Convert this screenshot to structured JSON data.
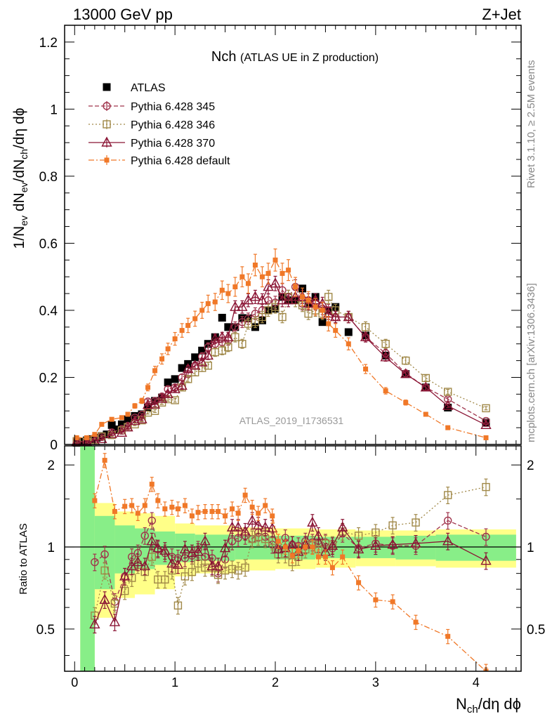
{
  "header": {
    "left": "13000 GeV pp",
    "right": "Z+Jet"
  },
  "side": {
    "rivet": "Rivet 3.1.10, ≥ 2.5M events",
    "mcplots": "mcplots.cern.ch [arXiv:1306.3436]"
  },
  "watermark": "ATLAS_2019_I1736531",
  "title": {
    "main": "Nch",
    "sub": "(ATLAS UE in Z production)"
  },
  "axes": {
    "ylabel_top": "1/N_ev dN_ev/dN_ch/dη dϕ",
    "ylabel_bottom": "Ratio to ATLAS",
    "xlabel": "N_ch/dη dϕ"
  },
  "chart_data": [
    {
      "type": "scatter",
      "panel": "main",
      "xlim": [
        -0.1,
        4.45
      ],
      "ylim": [
        0,
        1.25
      ],
      "xticks": [
        0,
        1,
        2,
        3,
        4
      ],
      "yticks": [
        0,
        0.2,
        0.4,
        0.6,
        0.8,
        1,
        1.2
      ],
      "ytick_labels": [
        "0",
        "0.2",
        "0.4",
        "0.6",
        "0.8",
        "1",
        "1.2"
      ],
      "legend_position": "top-left",
      "series": [
        {
          "name": "ATLAS",
          "color": "#000000",
          "marker": "filled-square",
          "dash": "none",
          "x": [
            0.02,
            0.07,
            0.12,
            0.17,
            0.22,
            0.27,
            0.32,
            0.37,
            0.42,
            0.47,
            0.53,
            0.6,
            0.67,
            0.73,
            0.8,
            0.87,
            0.93,
            1.0,
            1.07,
            1.13,
            1.2,
            1.27,
            1.33,
            1.4,
            1.47,
            1.53,
            1.6,
            1.67,
            1.73,
            1.8,
            1.87,
            1.93,
            2.0,
            2.07,
            2.13,
            2.2,
            2.27,
            2.33,
            2.4,
            2.47,
            2.53,
            2.6,
            2.73,
            2.9,
            3.1,
            3.3,
            3.5,
            3.72,
            4.1
          ],
          "y": [
            0.005,
            0.008,
            0.012,
            0.016,
            0.02,
            0.025,
            0.03,
            0.058,
            0.045,
            0.06,
            0.075,
            0.085,
            0.09,
            0.11,
            0.13,
            0.14,
            0.185,
            0.195,
            0.228,
            0.24,
            0.26,
            0.28,
            0.3,
            0.32,
            0.378,
            0.35,
            0.35,
            0.377,
            0.376,
            0.35,
            0.37,
            0.4,
            0.405,
            0.44,
            0.43,
            0.43,
            0.465,
            0.42,
            0.44,
            0.365,
            0.4,
            0.41,
            0.335,
            0.325,
            0.265,
            0.21,
            0.17,
            0.11,
            0.065
          ]
        },
        {
          "name": "Pythia 6.428 345",
          "color": "#a0344c",
          "marker": "open-circle",
          "dash": "6,3",
          "x": [
            0.02,
            0.12,
            0.2,
            0.27,
            0.37,
            0.47,
            0.53,
            0.6,
            0.67,
            0.73,
            0.8,
            0.87,
            0.93,
            1.0,
            1.07,
            1.13,
            1.2,
            1.27,
            1.33,
            1.4,
            1.47,
            1.53,
            1.6,
            1.67,
            1.73,
            1.8,
            1.87,
            1.93,
            2.0,
            2.07,
            2.13,
            2.2,
            2.27,
            2.33,
            2.4,
            2.47,
            2.53,
            2.6,
            2.73,
            2.9,
            3.1,
            3.3,
            3.5,
            3.72,
            4.1
          ],
          "y": [
            0.012,
            0.011,
            0.02,
            0.024,
            0.036,
            0.046,
            0.055,
            0.08,
            0.088,
            0.128,
            0.13,
            0.143,
            0.165,
            0.17,
            0.2,
            0.21,
            0.235,
            0.262,
            0.29,
            0.3,
            0.305,
            0.31,
            0.35,
            0.365,
            0.375,
            0.39,
            0.4,
            0.43,
            0.423,
            0.46,
            0.44,
            0.47,
            0.42,
            0.43,
            0.42,
            0.405,
            0.4,
            0.38,
            0.38,
            0.32,
            0.272,
            0.212,
            0.17,
            0.135,
            0.07
          ]
        },
        {
          "name": "Pythia 6.428 346",
          "color": "#a08848",
          "marker": "open-square",
          "dash": "2,3",
          "x": [
            0.02,
            0.12,
            0.2,
            0.27,
            0.37,
            0.47,
            0.53,
            0.6,
            0.67,
            0.73,
            0.8,
            0.87,
            0.93,
            1.0,
            1.07,
            1.13,
            1.2,
            1.27,
            1.33,
            1.4,
            1.47,
            1.53,
            1.6,
            1.67,
            1.73,
            1.8,
            1.87,
            1.93,
            2.0,
            2.07,
            2.13,
            2.2,
            2.27,
            2.33,
            2.4,
            2.47,
            2.53,
            2.6,
            2.73,
            2.9,
            3.1,
            3.3,
            3.5,
            3.72,
            4.1
          ],
          "y": [
            0.01,
            0.009,
            0.014,
            0.024,
            0.028,
            0.042,
            0.052,
            0.06,
            0.072,
            0.095,
            0.1,
            0.125,
            0.135,
            0.132,
            0.17,
            0.195,
            0.215,
            0.228,
            0.235,
            0.275,
            0.28,
            0.29,
            0.32,
            0.3,
            0.36,
            0.365,
            0.38,
            0.4,
            0.41,
            0.38,
            0.44,
            0.43,
            0.415,
            0.39,
            0.4,
            0.39,
            0.44,
            0.4,
            0.38,
            0.35,
            0.3,
            0.25,
            0.198,
            0.157,
            0.108
          ]
        },
        {
          "name": "Pythia 6.428 370",
          "color": "#8a1434",
          "marker": "open-triangle",
          "dash": "none",
          "x": [
            0.02,
            0.12,
            0.2,
            0.27,
            0.37,
            0.47,
            0.53,
            0.6,
            0.67,
            0.73,
            0.8,
            0.87,
            0.93,
            1.0,
            1.07,
            1.13,
            1.2,
            1.27,
            1.33,
            1.4,
            1.47,
            1.53,
            1.6,
            1.67,
            1.73,
            1.8,
            1.87,
            1.93,
            2.0,
            2.07,
            2.13,
            2.2,
            2.27,
            2.33,
            2.4,
            2.47,
            2.53,
            2.6,
            2.73,
            2.9,
            3.1,
            3.3,
            3.5,
            3.72,
            4.1
          ],
          "y": [
            0.008,
            0.008,
            0.01,
            0.016,
            0.031,
            0.035,
            0.051,
            0.07,
            0.075,
            0.118,
            0.119,
            0.136,
            0.15,
            0.165,
            0.175,
            0.225,
            0.235,
            0.245,
            0.265,
            0.315,
            0.32,
            0.32,
            0.41,
            0.41,
            0.43,
            0.44,
            0.43,
            0.47,
            0.48,
            0.43,
            0.43,
            0.44,
            0.44,
            0.42,
            0.43,
            0.42,
            0.39,
            0.38,
            0.38,
            0.32,
            0.26,
            0.21,
            0.17,
            0.115,
            0.058
          ]
        },
        {
          "name": "Pythia 6.428 default",
          "color": "#f07828",
          "marker": "small-filled-square",
          "dash": "8,3,2,3",
          "x": [
            0.02,
            0.12,
            0.2,
            0.27,
            0.37,
            0.47,
            0.53,
            0.6,
            0.67,
            0.73,
            0.8,
            0.87,
            0.93,
            1.0,
            1.07,
            1.13,
            1.2,
            1.27,
            1.33,
            1.4,
            1.47,
            1.53,
            1.6,
            1.67,
            1.73,
            1.8,
            1.87,
            1.93,
            2.0,
            2.07,
            2.13,
            2.2,
            2.27,
            2.33,
            2.4,
            2.47,
            2.53,
            2.6,
            2.73,
            2.9,
            3.1,
            3.3,
            3.5,
            3.72,
            4.1
          ],
          "y": [
            0.02,
            0.02,
            0.03,
            0.06,
            0.075,
            0.08,
            0.09,
            0.115,
            0.13,
            0.17,
            0.22,
            0.255,
            0.285,
            0.315,
            0.34,
            0.355,
            0.375,
            0.4,
            0.42,
            0.425,
            0.46,
            0.45,
            0.47,
            0.5,
            0.48,
            0.535,
            0.5,
            0.51,
            0.55,
            0.51,
            0.52,
            0.47,
            0.44,
            0.43,
            0.41,
            0.4,
            0.36,
            0.34,
            0.3,
            0.225,
            0.16,
            0.125,
            0.09,
            0.05,
            0.02
          ]
        }
      ]
    },
    {
      "type": "scatter",
      "panel": "ratio",
      "xlim": [
        -0.1,
        4.45
      ],
      "ylim": [
        0.35,
        2.35
      ],
      "log_y": true,
      "reference": 1,
      "yticks": [
        0.5,
        1,
        2
      ],
      "ytick_labels": [
        "0.5",
        "1",
        "2"
      ],
      "xticks": [
        0,
        1,
        2,
        3,
        4
      ],
      "xtick_labels": [
        "0",
        "1",
        "2",
        "3",
        "4"
      ],
      "band_inner": {
        "color": "#88ee88",
        "x": [
          0.0,
          0.2,
          0.4,
          0.6,
          0.8,
          1.0,
          1.2,
          1.6,
          2.0,
          2.4,
          2.8,
          3.2,
          3.6,
          4.4
        ],
        "half_width": [
          1.5,
          0.3,
          0.2,
          0.17,
          0.14,
          0.12,
          0.11,
          0.1,
          0.1,
          0.09,
          0.09,
          0.1,
          0.11,
          0.11
        ]
      },
      "band_outer": {
        "color": "#ffff88",
        "x": [
          0.0,
          0.2,
          0.4,
          0.6,
          0.8,
          1.0,
          1.2,
          1.6,
          2.0,
          2.4,
          2.8,
          3.2,
          3.6,
          4.4
        ],
        "half_width": [
          1.6,
          0.45,
          0.35,
          0.33,
          0.3,
          0.22,
          0.2,
          0.18,
          0.17,
          0.16,
          0.15,
          0.15,
          0.16,
          0.16
        ]
      },
      "series": [
        {
          "name": "Pythia 6.428 345",
          "color": "#a0344c",
          "marker": "open-circle",
          "dash": "6,3",
          "x": [
            0.2,
            0.3,
            0.4,
            0.5,
            0.57,
            0.63,
            0.7,
            0.77,
            0.83,
            0.9,
            0.97,
            1.03,
            1.1,
            1.17,
            1.23,
            1.3,
            1.37,
            1.43,
            1.5,
            1.57,
            1.63,
            1.7,
            1.77,
            1.83,
            1.9,
            1.97,
            2.03,
            2.1,
            2.17,
            2.23,
            2.3,
            2.37,
            2.43,
            2.5,
            2.57,
            2.67,
            2.83,
            3.0,
            3.17,
            3.4,
            3.72,
            4.1
          ],
          "y": [
            0.88,
            0.94,
            0.63,
            0.78,
            0.92,
            0.95,
            1.1,
            1.25,
            0.98,
            0.95,
            0.92,
            0.91,
            0.91,
            0.93,
            0.98,
            0.92,
            0.91,
            0.8,
            0.9,
            1.05,
            1.08,
            1.1,
            1.07,
            1.13,
            1.09,
            1.02,
            0.98,
            1.08,
            1.02,
            1.01,
            1.05,
            1.04,
            1.03,
            1.04,
            0.99,
            1.12,
            0.99,
            1.03,
            1.01,
            1.01,
            1.25,
            1.09
          ]
        },
        {
          "name": "Pythia 6.428 346",
          "color": "#a08848",
          "marker": "open-square",
          "dash": "2,3",
          "x": [
            0.2,
            0.3,
            0.4,
            0.5,
            0.57,
            0.63,
            0.7,
            0.77,
            0.83,
            0.9,
            0.97,
            1.03,
            1.1,
            1.17,
            1.23,
            1.3,
            1.37,
            1.43,
            1.5,
            1.57,
            1.63,
            1.7,
            1.77,
            1.83,
            1.9,
            1.97,
            2.03,
            2.1,
            2.17,
            2.23,
            2.3,
            2.37,
            2.43,
            2.5,
            2.57,
            2.67,
            2.83,
            3.0,
            3.17,
            3.4,
            3.72,
            4.1
          ],
          "y": [
            0.56,
            0.82,
            0.62,
            0.69,
            0.77,
            0.86,
            0.81,
            0.92,
            0.76,
            0.76,
            0.82,
            0.61,
            0.78,
            0.81,
            0.87,
            0.84,
            0.84,
            0.79,
            0.82,
            0.83,
            0.82,
            0.84,
            1.07,
            1.09,
            1.07,
            1.05,
            0.94,
            0.94,
            0.88,
            0.92,
            0.98,
            1.02,
            0.98,
            1.03,
            1.02,
            1.14,
            1.1,
            1.13,
            1.2,
            1.23,
            1.55,
            1.66
          ]
        },
        {
          "name": "Pythia 6.428 370",
          "color": "#8a1434",
          "marker": "open-triangle",
          "dash": "none",
          "x": [
            0.2,
            0.3,
            0.4,
            0.5,
            0.57,
            0.63,
            0.7,
            0.77,
            0.83,
            0.9,
            0.97,
            1.03,
            1.1,
            1.17,
            1.23,
            1.3,
            1.37,
            1.43,
            1.5,
            1.57,
            1.63,
            1.7,
            1.77,
            1.83,
            1.9,
            1.97,
            2.03,
            2.1,
            2.17,
            2.23,
            2.3,
            2.37,
            2.43,
            2.5,
            2.57,
            2.67,
            2.83,
            3.0,
            3.17,
            3.4,
            3.72,
            4.1
          ],
          "y": [
            0.52,
            0.64,
            0.53,
            0.78,
            0.85,
            0.88,
            0.85,
            1.05,
            0.99,
            0.97,
            0.87,
            0.86,
            0.98,
            0.95,
            0.96,
            1.05,
            0.85,
            0.85,
            0.99,
            1.18,
            1.18,
            1.14,
            1.25,
            1.2,
            1.18,
            1.17,
            0.98,
            0.99,
            1.02,
            0.96,
            1.02,
            1.23,
            1.1,
            0.96,
            1.01,
            1.18,
            0.98,
            1.01,
            1.02,
            1.03,
            1.05,
            0.89
          ]
        },
        {
          "name": "Pythia 6.428 default",
          "color": "#f07828",
          "marker": "small-filled-square",
          "dash": "8,3,2,3",
          "x": [
            0.2,
            0.3,
            0.4,
            0.5,
            0.57,
            0.63,
            0.7,
            0.77,
            0.83,
            0.9,
            0.97,
            1.03,
            1.1,
            1.17,
            1.23,
            1.3,
            1.37,
            1.43,
            1.5,
            1.57,
            1.63,
            1.7,
            1.77,
            1.83,
            1.9,
            1.97,
            2.03,
            2.1,
            2.17,
            2.23,
            2.3,
            2.37,
            2.43,
            2.5,
            2.57,
            2.67,
            2.83,
            3.0,
            3.17,
            3.4,
            3.72,
            4.1
          ],
          "y": [
            1.48,
            2.08,
            1.35,
            1.41,
            1.42,
            1.33,
            1.42,
            1.7,
            1.48,
            1.38,
            1.4,
            1.38,
            1.42,
            1.3,
            1.34,
            1.35,
            1.35,
            1.35,
            1.3,
            1.38,
            1.33,
            1.55,
            1.4,
            1.33,
            1.42,
            1.3,
            1.05,
            1.0,
            0.93,
            0.97,
            1.0,
            1.0,
            0.92,
            0.92,
            0.84,
            0.92,
            0.74,
            0.64,
            0.63,
            0.53,
            0.47,
            0.35
          ]
        }
      ]
    }
  ]
}
